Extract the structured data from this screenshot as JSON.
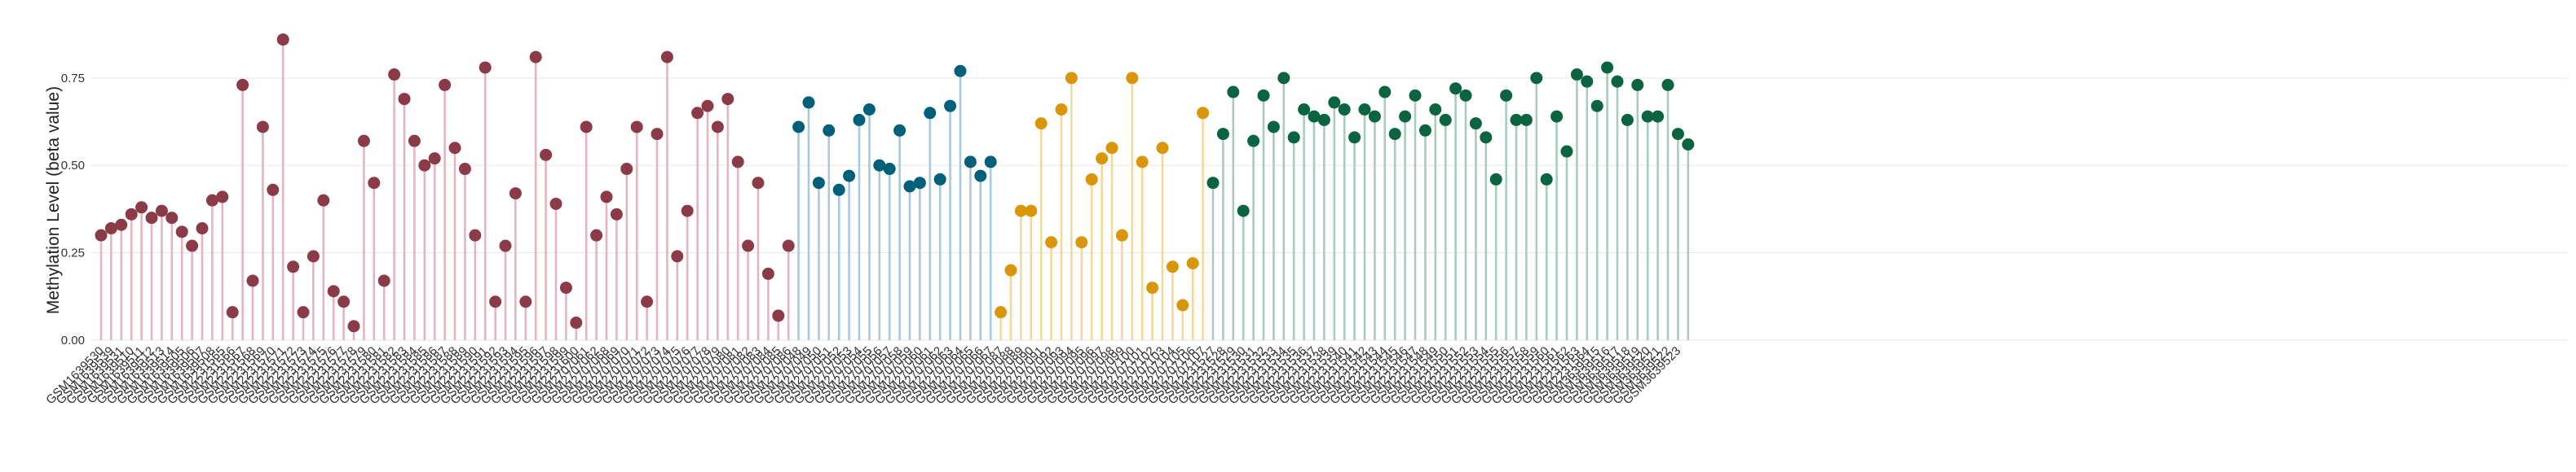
{
  "chart_data": {
    "type": "lollipop",
    "ylabel": "Methylation Level (beta value)",
    "xlabel": "",
    "ylim": [
      0,
      0.88
    ],
    "yticks": [
      "0.00",
      "0.25",
      "0.50",
      "0.75"
    ],
    "ytick_values": [
      0,
      0.25,
      0.5,
      0.75
    ],
    "grid": true,
    "legend": "none",
    "series": [
      {
        "color": "#8B3A48",
        "stem_color": "#E4B5BE",
        "categories": [
          "GSM1639530",
          "GSM1639539",
          "GSM1639531",
          "GSM1639510",
          "GSM1639511",
          "GSM1639512",
          "GSM1639513",
          "GSM1639514",
          "GSM1639505",
          "GSM1639506",
          "GSM1639507",
          "GSM1639508",
          "GSM2231565",
          "GSM2231566",
          "GSM2231567",
          "GSM2231568",
          "GSM2231569",
          "GSM2231570",
          "GSM2231571",
          "GSM2231572",
          "GSM2231573",
          "GSM2231574",
          "GSM2231575",
          "GSM2231576",
          "GSM2231577",
          "GSM2231578",
          "GSM2231579",
          "GSM2231580",
          "GSM2231581",
          "GSM2231582",
          "GSM2231583",
          "GSM2231584",
          "GSM2231585",
          "GSM2231586",
          "GSM2231587",
          "GSM2231588",
          "GSM2231589",
          "GSM2231590",
          "GSM2231591",
          "GSM2231592",
          "GSM2231593",
          "GSM2231594",
          "GSM2231595",
          "GSM2231596",
          "GSM2231597",
          "GSM2231598",
          "GSM2231599",
          "GSM2231600",
          "GSM2707061",
          "GSM2707062",
          "GSM2707068",
          "GSM2707069",
          "GSM2707070",
          "GSM2707071",
          "GSM2707072",
          "GSM2707073",
          "GSM2707074",
          "GSM2707075",
          "GSM2707076",
          "GSM2707077",
          "GSM2707078",
          "GSM2707079",
          "GSM2707080",
          "GSM2707081",
          "GSM2707082",
          "GSM2707083",
          "GSM2707084",
          "GSM2707085",
          "GSM2707086"
        ],
        "values": [
          0.3,
          0.32,
          0.33,
          0.36,
          0.38,
          0.35,
          0.37,
          0.35,
          0.31,
          0.27,
          0.32,
          0.4,
          0.41,
          0.08,
          0.73,
          0.17,
          0.61,
          0.43,
          0.86,
          0.21,
          0.08,
          0.24,
          0.4,
          0.14,
          0.11,
          0.04,
          0.57,
          0.45,
          0.17,
          0.76,
          0.69,
          0.57,
          0.5,
          0.52,
          0.73,
          0.55,
          0.49,
          0.3,
          0.78,
          0.11,
          0.27,
          0.42,
          0.11,
          0.81,
          0.53,
          0.39,
          0.15,
          0.05,
          0.61,
          0.3,
          0.41,
          0.36,
          0.49,
          0.61,
          0.11,
          0.59,
          0.81,
          0.24,
          0.37,
          0.65,
          0.67,
          0.61,
          0.69,
          0.51,
          0.27,
          0.45,
          0.19,
          0.07,
          0.27
        ]
      },
      {
        "color": "#00607A",
        "stem_color": "#A9CADD",
        "categories": [
          "GSM2707048",
          "GSM2707049",
          "GSM2707050",
          "GSM2707051",
          "GSM2707052",
          "GSM2707053",
          "GSM2707054",
          "GSM2707055",
          "GSM2707056",
          "GSM2707057",
          "GSM2707058",
          "GSM2707059",
          "GSM2707060",
          "GSM2707061",
          "GSM2707062",
          "GSM2707063",
          "GSM2707064",
          "GSM2707065",
          "GSM2707066",
          "GSM2707067"
        ],
        "values": [
          0.61,
          0.68,
          0.45,
          0.6,
          0.43,
          0.47,
          0.63,
          0.66,
          0.5,
          0.49,
          0.6,
          0.44,
          0.45,
          0.65,
          0.46,
          0.67,
          0.77,
          0.51,
          0.47,
          0.51
        ]
      },
      {
        "color": "#D9960A",
        "stem_color": "#F4D89B",
        "categories": [
          "GSM2707087",
          "GSM2707088",
          "GSM2707089",
          "GSM2707090",
          "GSM2707091",
          "GSM2707092",
          "GSM2707093",
          "GSM2707094",
          "GSM2707095",
          "GSM2707096",
          "GSM2707097",
          "GSM2707098",
          "GSM2707099",
          "GSM2707100",
          "GSM2707101",
          "GSM2707102",
          "GSM2707103",
          "GSM2707104",
          "GSM2707105",
          "GSM2707106",
          "GSM2707107"
        ],
        "values": [
          0.08,
          0.2,
          0.37,
          0.37,
          0.62,
          0.28,
          0.66,
          0.75,
          0.28,
          0.46,
          0.52,
          0.55,
          0.3,
          0.75,
          0.51,
          0.15,
          0.55,
          0.21,
          0.1,
          0.22,
          0.65
        ]
      },
      {
        "color": "#0B6440",
        "stem_color": "#A8CDBD",
        "categories": [
          "GSM2231527",
          "GSM2231528",
          "GSM2231529",
          "GSM2231530",
          "GSM2231531",
          "GSM2231532",
          "GSM2231533",
          "GSM2231534",
          "GSM2231535",
          "GSM2231536",
          "GSM2231537",
          "GSM2231538",
          "GSM2231539",
          "GSM2231540",
          "GSM2231541",
          "GSM2231542",
          "GSM2231543",
          "GSM2231544",
          "GSM2231545",
          "GSM2231546",
          "GSM2231547",
          "GSM2231548",
          "GSM2231549",
          "GSM2231550",
          "GSM2231551",
          "GSM2231552",
          "GSM2231553",
          "GSM2231554",
          "GSM2231555",
          "GSM2231556",
          "GSM2231557",
          "GSM2231558",
          "GSM2231559",
          "GSM2231560",
          "GSM2231561",
          "GSM2231562",
          "GSM2231563",
          "GSM2231564",
          "GSM3639515",
          "GSM3639516",
          "GSM3639517",
          "GSM3639518",
          "GSM3639519",
          "GSM3639520",
          "GSM3639521",
          "GSM3639522",
          "GSM3639523"
        ],
        "values": [
          0.45,
          0.59,
          0.71,
          0.37,
          0.57,
          0.7,
          0.61,
          0.75,
          0.58,
          0.66,
          0.64,
          0.63,
          0.68,
          0.66,
          0.58,
          0.66,
          0.64,
          0.71,
          0.59,
          0.64,
          0.7,
          0.6,
          0.66,
          0.63,
          0.72,
          0.7,
          0.62,
          0.58,
          0.46,
          0.7,
          0.63,
          0.63,
          0.75,
          0.46,
          0.64,
          0.54,
          0.76,
          0.74,
          0.67,
          0.78,
          0.74,
          0.63,
          0.73,
          0.64,
          0.64,
          0.73,
          0.59
        ]
      }
    ],
    "trailing_point": {
      "value": 0.56
    }
  }
}
